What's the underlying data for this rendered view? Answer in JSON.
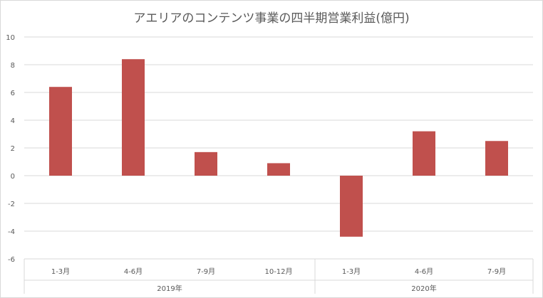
{
  "chart_data": {
    "type": "bar",
    "title": "アエリアのコンテンツ事業の四半期営業利益(億円)",
    "xlabel": "",
    "ylabel": "",
    "ylim": [
      -6,
      10
    ],
    "yticks": [
      "10",
      "8",
      "6",
      "4",
      "2",
      "0",
      "-2",
      "-4",
      "-6"
    ],
    "ytick_values": [
      10,
      8,
      6,
      4,
      2,
      0,
      -2,
      -4,
      -6
    ],
    "categories": [
      "1-3月",
      "4-6月",
      "7-9月",
      "10-12月",
      "1-3月",
      "4-6月",
      "7-9月"
    ],
    "groups": [
      {
        "label": "2019年",
        "count": 4
      },
      {
        "label": "2020年",
        "count": 3
      }
    ],
    "values": [
      6.4,
      8.4,
      1.7,
      0.9,
      -4.4,
      3.2,
      2.5
    ],
    "bar_color": "#c0504d",
    "grid": true,
    "legend": "none"
  }
}
